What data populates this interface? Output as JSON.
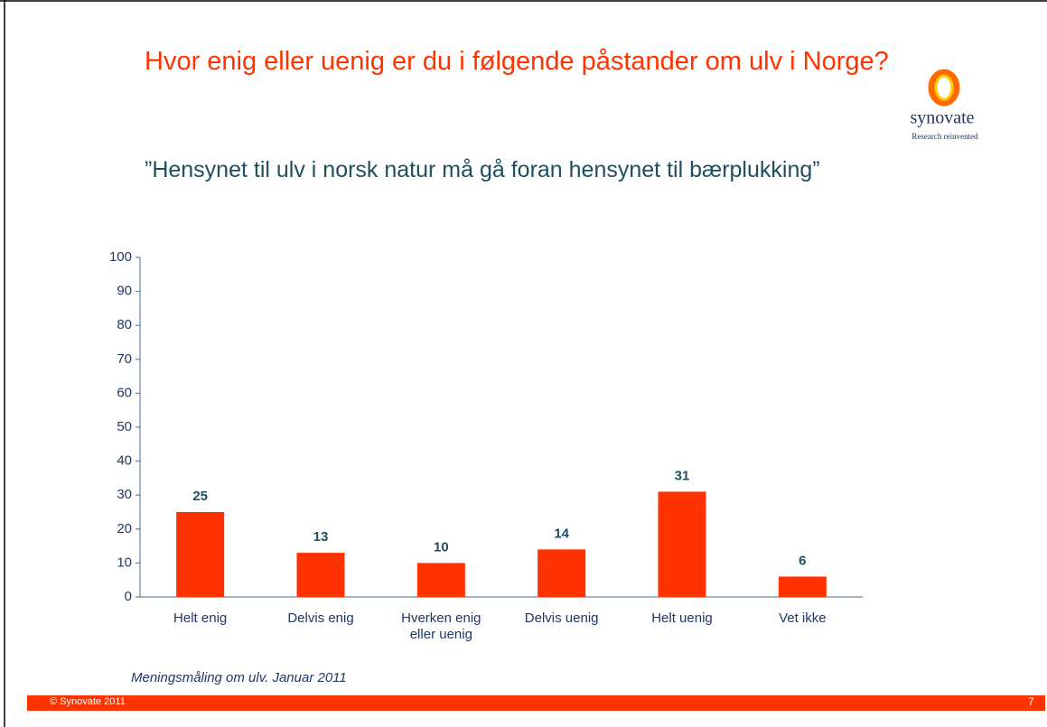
{
  "header": {
    "title": "Hvor enig eller uenig er du i følgende påstander om ulv i Norge?",
    "logo": "synovate",
    "tagline": "Research reinvented"
  },
  "chart_data": {
    "type": "bar",
    "title": "”Hensynet til ulv i norsk natur må gå foran hensynet til bærplukking”",
    "categories": [
      "Helt enig",
      "Delvis enig",
      "Hverken enig eller uenig",
      "Delvis uenig",
      "Helt uenig",
      "Vet ikke"
    ],
    "values": [
      25,
      13,
      10,
      14,
      31,
      6
    ],
    "color": "#ff3300",
    "ylim": [
      0,
      100
    ],
    "yticks": [
      0,
      10,
      20,
      30,
      40,
      50,
      60,
      70,
      80,
      90,
      100
    ]
  },
  "footnote": "Meningsmåling om ulv. Januar 2011",
  "footer": {
    "copyright": "© Synovate 2011",
    "page": "7"
  }
}
